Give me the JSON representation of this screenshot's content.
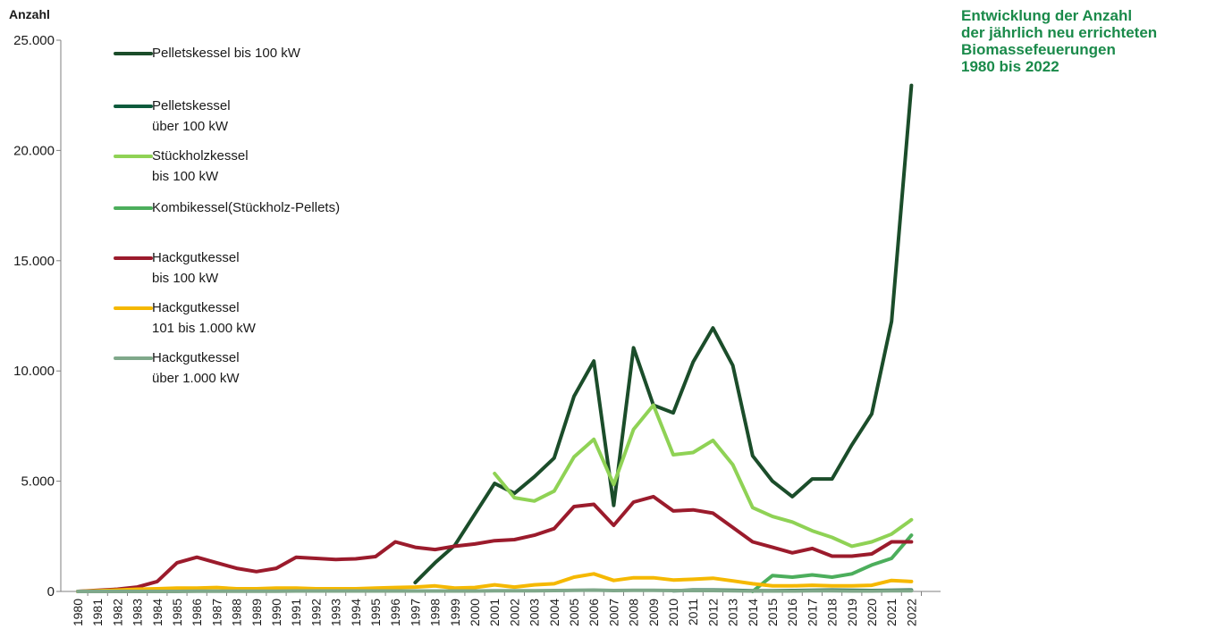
{
  "title_lines": [
    "Entwicklung der Anzahl",
    "der jährlich neu errichteten",
    "Biomassefeuerungen",
    "1980 bis 2022"
  ],
  "chart_data": {
    "type": "line",
    "ylabel": "Anzahl",
    "ylim": [
      0,
      25000
    ],
    "yticks": [
      0,
      5000,
      10000,
      15000,
      20000,
      25000
    ],
    "ytick_labels": [
      "0",
      "5.000",
      "10.000",
      "15.000",
      "20.000",
      "25.000"
    ],
    "legend_position": "top-left",
    "x": [
      "1980",
      "1981",
      "1982",
      "1983",
      "1984",
      "1985",
      "1986",
      "1987",
      "1988",
      "1989",
      "1990",
      "1991",
      "1992",
      "1993",
      "1994",
      "1995",
      "1996",
      "1997",
      "1998",
      "1999",
      "2000",
      "2001",
      "2002",
      "2003",
      "2004",
      "2005",
      "2006",
      "2007",
      "2008",
      "2009",
      "2010",
      "2011",
      "2012",
      "2013",
      "2014",
      "2015",
      "2016",
      "2017",
      "2018",
      "2019",
      "2020",
      "2021",
      "2022"
    ],
    "series": [
      {
        "name": "Pelletskessel bis 100 kW",
        "color": "#1b4d2a",
        "values": [
          null,
          null,
          null,
          null,
          null,
          null,
          null,
          null,
          null,
          null,
          null,
          null,
          null,
          null,
          null,
          null,
          null,
          400,
          1300,
          2100,
          3500,
          4900,
          4450,
          5200,
          6050,
          8850,
          10450,
          3900,
          11050,
          8450,
          8100,
          10400,
          11950,
          10250,
          6150,
          5000,
          4300,
          5100,
          5100,
          6650,
          8050,
          12250,
          22950
        ]
      },
      {
        "name": "Pelletskessel über 100 kW",
        "color": "#0d5a3c",
        "values": [
          null,
          null,
          null,
          null,
          null,
          null,
          null,
          null,
          null,
          null,
          null,
          null,
          null,
          null,
          null,
          null,
          null,
          null,
          null,
          null,
          null,
          null,
          null,
          null,
          null,
          null,
          null,
          null,
          null,
          null,
          30,
          60,
          60,
          50,
          30,
          30,
          40,
          50,
          60,
          50,
          40,
          50,
          60
        ]
      },
      {
        "name": "Stückholzkessel bis 100 kW",
        "color": "#8fd255",
        "values": [
          null,
          null,
          null,
          null,
          null,
          null,
          null,
          null,
          null,
          null,
          null,
          null,
          null,
          null,
          null,
          null,
          null,
          null,
          null,
          null,
          null,
          5350,
          4250,
          4100,
          4550,
          6100,
          6900,
          4850,
          7350,
          8450,
          6200,
          6300,
          6850,
          5750,
          3800,
          3400,
          3150,
          2750,
          2450,
          2050,
          2250,
          2600,
          3250
        ]
      },
      {
        "name": "Kombikessel(Stückholz-Pellets)",
        "color": "#4cae5c",
        "values": [
          null,
          null,
          null,
          null,
          null,
          null,
          null,
          null,
          null,
          null,
          null,
          null,
          null,
          null,
          null,
          null,
          null,
          null,
          null,
          null,
          null,
          null,
          null,
          null,
          null,
          null,
          null,
          null,
          null,
          null,
          null,
          null,
          null,
          null,
          0,
          720,
          650,
          750,
          650,
          800,
          1200,
          1500,
          2550
        ]
      },
      {
        "name": "Hackgutkessel bis 100 kW",
        "color": "#9b1b2c",
        "values": [
          0,
          50,
          100,
          200,
          450,
          1300,
          1550,
          1300,
          1050,
          900,
          1050,
          1550,
          1500,
          1450,
          1480,
          1580,
          2250,
          2000,
          1900,
          2050,
          2150,
          2300,
          2350,
          2550,
          2850,
          3850,
          3950,
          3000,
          4050,
          4300,
          3650,
          3700,
          3550,
          2900,
          2250,
          2000,
          1750,
          1950,
          1600,
          1600,
          1700,
          2250,
          2250
        ]
      },
      {
        "name": "Hackgutkessel 101 bis 1.000 kW",
        "color": "#f5b800",
        "values": [
          0,
          30,
          60,
          100,
          120,
          150,
          150,
          180,
          120,
          120,
          150,
          150,
          120,
          120,
          120,
          150,
          180,
          200,
          250,
          150,
          180,
          300,
          200,
          300,
          350,
          650,
          800,
          500,
          620,
          620,
          520,
          550,
          600,
          480,
          350,
          250,
          250,
          280,
          250,
          250,
          280,
          500,
          450
        ]
      },
      {
        "name": "Hackgutkessel über 1.000 kW",
        "color": "#7fa88a",
        "values": [
          0,
          0,
          0,
          0,
          0,
          0,
          10,
          10,
          10,
          10,
          10,
          20,
          20,
          20,
          20,
          20,
          20,
          20,
          20,
          20,
          20,
          30,
          30,
          30,
          40,
          50,
          60,
          40,
          50,
          50,
          40,
          40,
          40,
          30,
          20,
          20,
          20,
          30,
          30,
          20,
          20,
          30,
          30
        ]
      }
    ]
  },
  "legend": [
    {
      "label": "Pelletskessel bis 100 kW",
      "color": "#1b4d2a"
    },
    {
      "label": "Pelletskessel\nüber 100 kW",
      "color": "#0d5a3c"
    },
    {
      "label": "Stückholzkessel\nbis 100 kW",
      "color": "#8fd255"
    },
    {
      "label": "Kombikessel(Stückholz-Pellets)",
      "color": "#4cae5c"
    },
    {
      "label": "Hackgutkessel\nbis 100 kW",
      "color": "#9b1b2c"
    },
    {
      "label": "Hackgutkessel\n101 bis 1.000 kW",
      "color": "#f5b800"
    },
    {
      "label": "Hackgutkessel\nüber 1.000 kW",
      "color": "#7fa88a"
    }
  ]
}
